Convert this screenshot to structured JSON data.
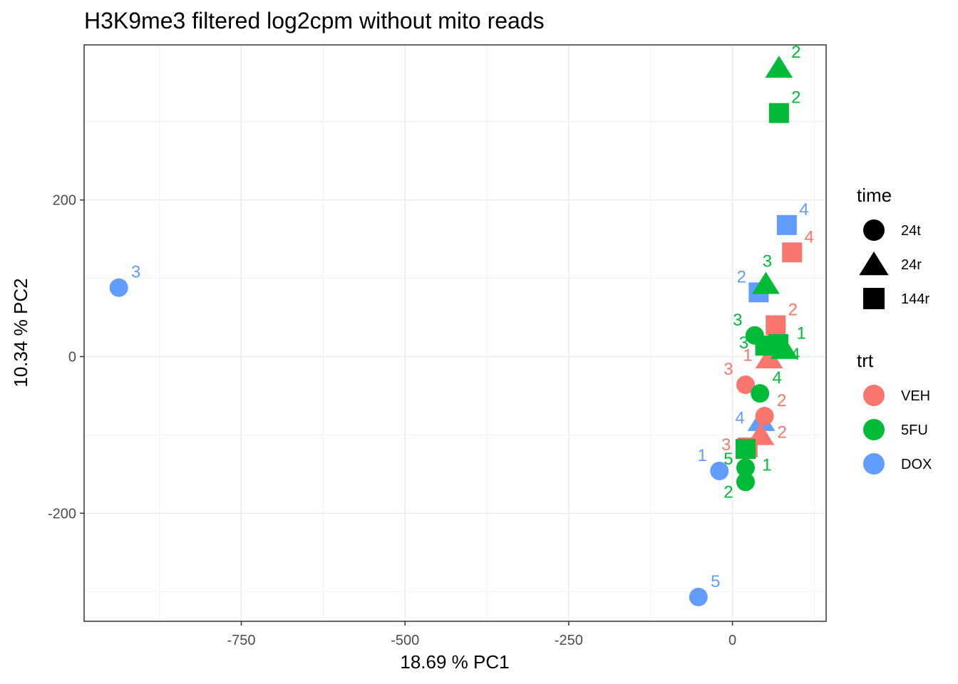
{
  "chart_data": {
    "type": "scatter",
    "title": "H3K9me3 filtered log2cpm without mito reads",
    "xlabel": "18.69 % PC1",
    "ylabel": "10.34 % PC2",
    "xlim": [
      -990,
      143
    ],
    "ylim": [
      -338,
      398
    ],
    "x_ticks": [
      -750,
      -500,
      -250,
      0
    ],
    "x_tick_labels": [
      "-750",
      "-500",
      "-250",
      "0"
    ],
    "y_ticks": [
      -200,
      0,
      200
    ],
    "y_tick_labels": [
      "-200",
      "0",
      "200"
    ],
    "grid": true,
    "legend_position": "right",
    "colors": {
      "VEH": "#F8766D",
      "5FU": "#00BA38",
      "DOX": "#619CFF"
    },
    "legends": [
      {
        "title": "time",
        "kind": "shape",
        "entries": [
          {
            "label": "24t",
            "shape": "circle"
          },
          {
            "label": "24r",
            "shape": "triangle"
          },
          {
            "label": "144r",
            "shape": "square"
          }
        ]
      },
      {
        "title": "trt",
        "kind": "color",
        "entries": [
          {
            "label": "VEH",
            "color": "VEH"
          },
          {
            "label": "5FU",
            "color": "5FU"
          },
          {
            "label": "DOX",
            "color": "DOX"
          }
        ]
      }
    ],
    "points": [
      {
        "x": -937,
        "y": 88,
        "trt": "DOX",
        "time": "24t",
        "label": "3"
      },
      {
        "x": -52,
        "y": -307,
        "trt": "DOX",
        "time": "24t",
        "label": "5"
      },
      {
        "x": -20,
        "y": -146,
        "trt": "DOX",
        "time": "24t",
        "label": "1"
      },
      {
        "x": 44,
        "y": -82,
        "trt": "DOX",
        "time": "24r",
        "label": "4"
      },
      {
        "x": 40,
        "y": 82,
        "trt": "DOX",
        "time": "144r",
        "label": "2"
      },
      {
        "x": 83,
        "y": 168,
        "trt": "DOX",
        "time": "144r",
        "label": "4"
      },
      {
        "x": 20,
        "y": -36,
        "trt": "VEH",
        "time": "24t",
        "label": "3"
      },
      {
        "x": 49,
        "y": -76,
        "trt": "VEH",
        "time": "24t",
        "label": "2"
      },
      {
        "x": 56,
        "y": -2,
        "trt": "VEH",
        "time": "24r",
        "label": "1"
      },
      {
        "x": 43,
        "y": -100,
        "trt": "VEH",
        "time": "24r",
        "label": "2"
      },
      {
        "x": 91,
        "y": 133,
        "trt": "VEH",
        "time": "144r",
        "label": "4"
      },
      {
        "x": 66,
        "y": 40,
        "trt": "VEH",
        "time": "144r",
        "label": "2"
      },
      {
        "x": 23,
        "y": -116,
        "trt": "VEH",
        "time": "144r",
        "label": "3"
      },
      {
        "x": 34,
        "y": 27,
        "trt": "5FU",
        "time": "24t",
        "label": "3"
      },
      {
        "x": 42,
        "y": -47,
        "trt": "5FU",
        "time": "24t",
        "label": "4"
      },
      {
        "x": 20,
        "y": -142,
        "trt": "5FU",
        "time": "24t",
        "label": "1"
      },
      {
        "x": 20,
        "y": -160,
        "trt": "5FU",
        "time": "24t",
        "label": "2"
      },
      {
        "x": 71,
        "y": 369,
        "trt": "5FU",
        "time": "24r",
        "label": "2"
      },
      {
        "x": 51,
        "y": 93,
        "trt": "5FU",
        "time": "24r",
        "label": "3"
      },
      {
        "x": 79,
        "y": 10,
        "trt": "5FU",
        "time": "24r",
        "label": "1"
      },
      {
        "x": 71,
        "y": 311,
        "trt": "5FU",
        "time": "144r",
        "label": "2"
      },
      {
        "x": 70,
        "y": 16,
        "trt": "5FU",
        "time": "144r",
        "label": "4"
      },
      {
        "x": 50,
        "y": 14,
        "trt": "5FU",
        "time": "144r",
        "label": "3"
      },
      {
        "x": 20,
        "y": -118,
        "trt": "5FU",
        "time": "144r",
        "label": "5"
      }
    ]
  }
}
